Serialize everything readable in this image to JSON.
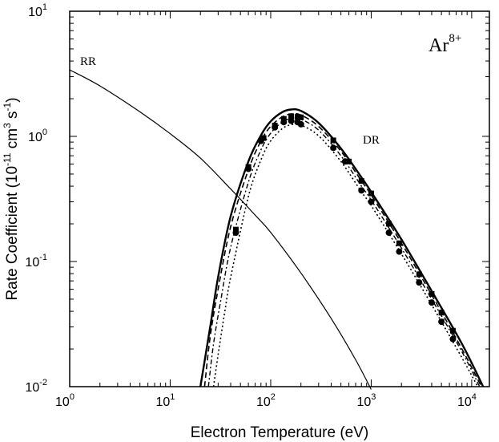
{
  "chart_data": {
    "type": "line",
    "title": "",
    "xlabel": "Electron Temperature (eV)",
    "ylabel": {
      "prefix": "Rate Coefficient (10",
      "exp1": "-11",
      "mid1": " cm",
      "exp2": "3",
      "mid2": " s",
      "exp3": "-1",
      "suffix": ")"
    },
    "x_scale": "log",
    "y_scale": "log",
    "xlim": [
      1,
      15000
    ],
    "ylim": [
      0.01,
      10
    ],
    "x_ticks": [
      {
        "value": 1,
        "base": "10",
        "exp": "0"
      },
      {
        "value": 10,
        "base": "10",
        "exp": "1"
      },
      {
        "value": 100,
        "base": "10",
        "exp": "2"
      },
      {
        "value": 1000,
        "base": "10",
        "exp": "3"
      },
      {
        "value": 10000,
        "base": "10",
        "exp": "4"
      }
    ],
    "y_ticks": [
      {
        "value": 0.01,
        "base": "10",
        "exp": "-2"
      },
      {
        "value": 0.1,
        "base": "10",
        "exp": "-1"
      },
      {
        "value": 1,
        "base": "10",
        "exp": "0"
      },
      {
        "value": 10,
        "base": "10",
        "exp": "1"
      }
    ],
    "grid": false,
    "annotations": {
      "ion": {
        "base": "Ar",
        "charge": "8+"
      },
      "rr": "RR",
      "dr": "DR"
    },
    "series": [
      {
        "style": "thin-solid",
        "x": [
          1,
          2,
          5,
          10,
          20,
          40,
          70,
          100,
          200,
          400,
          700,
          1000
        ],
        "y": [
          3.4,
          2.53,
          1.57,
          1.05,
          0.67,
          0.38,
          0.235,
          0.171,
          0.081,
          0.035,
          0.0164,
          0.0095
        ]
      },
      {
        "style": "thick-solid",
        "x": [
          20,
          25,
          30,
          40,
          60,
          80,
          100,
          130,
          160,
          200,
          300,
          500,
          800,
          1000,
          2000,
          4000,
          8000,
          13000
        ],
        "y": [
          0.01,
          0.03,
          0.075,
          0.23,
          0.63,
          1.02,
          1.32,
          1.56,
          1.64,
          1.6,
          1.28,
          0.8,
          0.47,
          0.36,
          0.15,
          0.058,
          0.022,
          0.01
        ]
      },
      {
        "style": "dashed",
        "x": [
          22,
          25,
          30,
          40,
          60,
          80,
          100,
          130,
          160,
          200,
          300,
          500,
          800,
          1000,
          2000,
          4000,
          8000,
          12500
        ],
        "y": [
          0.01,
          0.025,
          0.06,
          0.19,
          0.54,
          0.92,
          1.2,
          1.43,
          1.51,
          1.48,
          1.2,
          0.76,
          0.44,
          0.34,
          0.14,
          0.054,
          0.02,
          0.01
        ]
      },
      {
        "style": "dash-dot",
        "x": [
          24,
          27,
          32,
          40,
          60,
          80,
          100,
          130,
          160,
          200,
          300,
          500,
          800,
          1000,
          2000,
          4000,
          8000,
          12000
        ],
        "y": [
          0.01,
          0.022,
          0.05,
          0.13,
          0.43,
          0.78,
          1.06,
          1.3,
          1.39,
          1.37,
          1.12,
          0.7,
          0.4,
          0.31,
          0.128,
          0.05,
          0.019,
          0.01
        ]
      },
      {
        "style": "dotted",
        "x": [
          27,
          30,
          35,
          40,
          60,
          80,
          100,
          130,
          160,
          200,
          300,
          500,
          800,
          1000,
          2000,
          4000,
          8000,
          11500
        ],
        "y": [
          0.01,
          0.018,
          0.04,
          0.075,
          0.33,
          0.65,
          0.92,
          1.15,
          1.24,
          1.23,
          1.01,
          0.63,
          0.36,
          0.28,
          0.115,
          0.045,
          0.017,
          0.01
        ]
      },
      {
        "style": "square-markers",
        "x": [
          45,
          60,
          85,
          110,
          135,
          160,
          185,
          200,
          420,
          600,
          800,
          1000,
          1500,
          1900,
          3000,
          4000,
          5000,
          6500
        ],
        "y": [
          0.18,
          0.57,
          0.97,
          1.22,
          1.38,
          1.45,
          1.43,
          1.42,
          0.93,
          0.63,
          0.44,
          0.35,
          0.2,
          0.14,
          0.079,
          0.055,
          0.039,
          0.028
        ]
      },
      {
        "style": "circle-markers",
        "x": [
          45,
          60,
          80,
          110,
          135,
          160,
          185,
          200,
          420,
          550,
          800,
          1000,
          1500,
          1900,
          3000,
          4000,
          5000,
          6500
        ],
        "y": [
          0.17,
          0.55,
          0.92,
          1.18,
          1.3,
          1.33,
          1.3,
          1.25,
          0.81,
          0.63,
          0.37,
          0.3,
          0.17,
          0.12,
          0.068,
          0.047,
          0.033,
          0.024
        ]
      }
    ]
  }
}
